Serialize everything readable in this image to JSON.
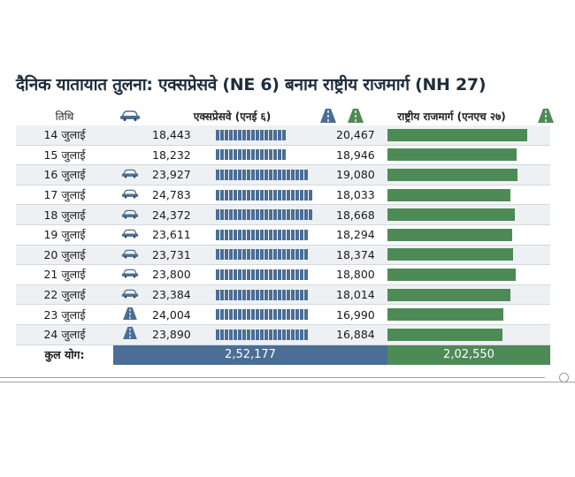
{
  "title": "दैनिक यातायात तुलना: एक्सप्रेसवे (NE 6) बनाम राष्ट्रीय राजमार्ग (NH 27)",
  "headers": {
    "date": "तिथि",
    "expressway": "एक्सप्रेसवे (एनई ६)",
    "highway": "राष्ट्रीय राजमार्ग (एनएच २७)"
  },
  "colors": {
    "expressway": "#4a6e95",
    "highway": "#4e8a55"
  },
  "chart_data": {
    "type": "bar",
    "title": "दैनिक यातायात तुलना: एक्सप्रेसवे (NE 6) बनाम राष्ट्रीय राजमार्ग (NH 27)",
    "categories": [
      "14 जुलाई",
      "15 जुलाई",
      "16 जुलाई",
      "17 जुलाई",
      "18 जुलाई",
      "19 जुलाई",
      "20 जुलाई",
      "21 जुलाई",
      "22 जुलाई",
      "23 जुलाई",
      "24 जुलाई"
    ],
    "series": [
      {
        "name": "एक्सप्रेसवे (एनई ६)",
        "values": [
          18443,
          18232,
          23927,
          24783,
          24372,
          23611,
          23731,
          23800,
          23384,
          24004,
          23890
        ],
        "labels": [
          "18,443",
          "18,232",
          "23,927",
          "24,783",
          "24,372",
          "23,611",
          "23,731",
          "23,800",
          "23,384",
          "24,004",
          "23,890"
        ],
        "total": "2,52,177"
      },
      {
        "name": "राष्ट्रीय राजमार्ग (एनएच २७)",
        "values": [
          20467,
          18946,
          19080,
          18033,
          18668,
          18294,
          18374,
          18800,
          18014,
          16990,
          16884
        ],
        "labels": [
          "20,467",
          "18,946",
          "19,080",
          "18,033",
          "18,668",
          "18,294",
          "18,374",
          "18,800",
          "18,014",
          "16,990",
          "16,884"
        ],
        "total": "2,02,550"
      }
    ],
    "row_icons": [
      "",
      "",
      "car-icon",
      "car-icon",
      "car-icon",
      "car-icon",
      "car-icon",
      "car-icon",
      "car-icon",
      "road-icon",
      "road-icon"
    ]
  },
  "total_label": "कुल योग:"
}
